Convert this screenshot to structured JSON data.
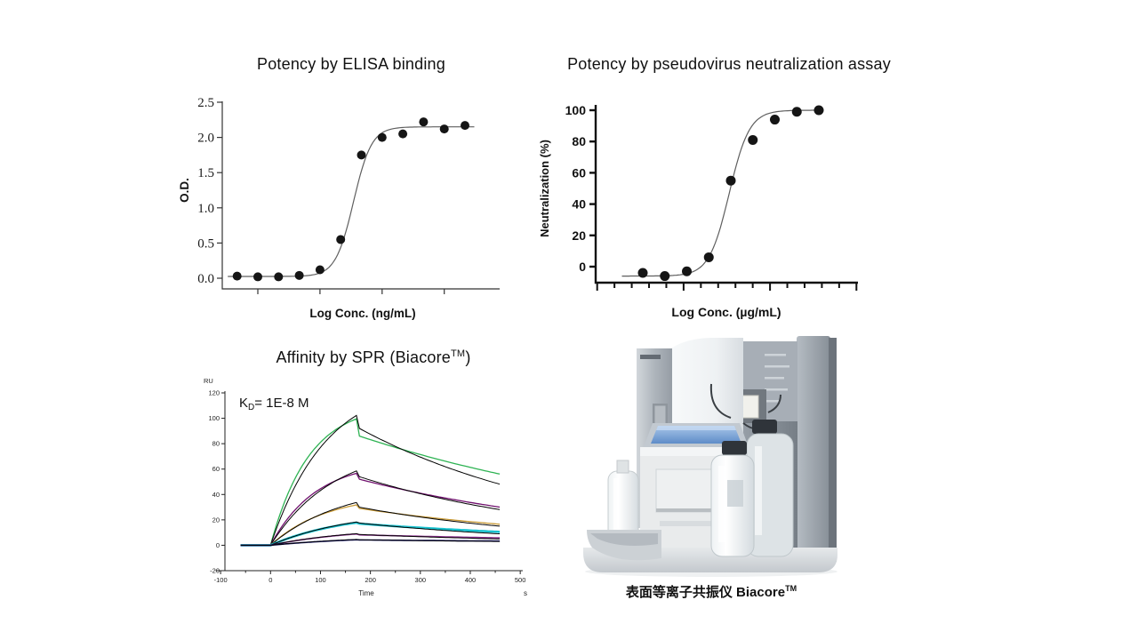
{
  "figure": {
    "background": "#ffffff"
  },
  "chart_data": [
    {
      "id": "elisa",
      "type": "scatter",
      "title": "Potency by ELISA binding",
      "xlabel": "Log Conc. (ng/mL)",
      "ylabel": "O.D.",
      "ylim": [
        0,
        2.5
      ],
      "ytick_labels": [
        "0.0",
        "0.5",
        "1.0",
        "1.5",
        "2.0",
        "2.5"
      ],
      "ytick_values": [
        0,
        0.5,
        1.0,
        1.5,
        2.0,
        2.5
      ],
      "x_axis_note": "unlabeled log-dilution ticks",
      "x_tick_point_indices": [
        1,
        4,
        7,
        10
      ],
      "values": [
        0.03,
        0.02,
        0.02,
        0.04,
        0.12,
        0.55,
        1.75,
        2.0,
        2.05,
        2.22,
        2.12,
        2.17
      ],
      "fit4pl": {
        "bottom": 0.025,
        "top": 2.15,
        "mid_index": 5.62,
        "hill": 1.0
      },
      "point_color": "#151515",
      "curve_color": "#5f5f5f",
      "grid": false,
      "legend": "none"
    },
    {
      "id": "neutralization",
      "type": "scatter",
      "title": "Potency by pseudovirus neutralization assay",
      "xlabel": "Log Conc. (µg/mL)",
      "ylabel": "Neutralization (%)",
      "ylim": [
        -12,
        105
      ],
      "ytick_labels": [
        "0",
        "20",
        "40",
        "60",
        "80",
        "100"
      ],
      "ytick_values": [
        0,
        20,
        40,
        60,
        80,
        100
      ],
      "x_axis_note": "unlabeled log-dilution ticks",
      "n_x_ticks": 16,
      "major_every": 5,
      "values": [
        -4,
        -6,
        -3,
        6,
        55,
        81,
        94,
        99,
        100
      ],
      "fit4pl": {
        "bottom": -6,
        "top": 100,
        "mid_index": 3.93,
        "hill": 0.95
      },
      "point_color": "#151515",
      "curve_color": "#5f5f5f",
      "grid": false,
      "legend": "none"
    },
    {
      "id": "spr",
      "type": "line",
      "title_prefix": "Affinity by SPR (Biacore",
      "title_sup": "TM",
      "title_suffix": ")",
      "annotation": {
        "main": "K",
        "sub": "D",
        "rest": "= 1E-8 M"
      },
      "y_unit": "RU",
      "xlabel": "Time",
      "x_unit": "s",
      "ylim": [
        -20,
        120
      ],
      "ytick_values": [
        120,
        100,
        80,
        60,
        40,
        20,
        0,
        -20
      ],
      "xtick_values": [
        -100,
        0,
        100,
        200,
        300,
        400,
        500
      ],
      "xlim": [
        -100,
        500
      ],
      "baseline_start": -60,
      "assoc_start": 0,
      "peak_time": 175,
      "end_time": 460,
      "grid": false,
      "series": [
        {
          "name": "sensorgram-1",
          "color": "#2eb353",
          "width": 1.3,
          "peak": 100,
          "after_spike": 86,
          "end": 56,
          "ka": 0.013
        },
        {
          "name": "fit-1",
          "color": "#000000",
          "width": 1.0,
          "peak": 103,
          "after_spike": 92,
          "end": 48,
          "ka": 0.009
        },
        {
          "name": "sensorgram-2",
          "color": "#70106e",
          "width": 1.3,
          "peak": 57,
          "after_spike": 52,
          "end": 30,
          "ka": 0.011
        },
        {
          "name": "fit-2",
          "color": "#000000",
          "width": 1.0,
          "peak": 59,
          "after_spike": 54,
          "end": 28,
          "ka": 0.008
        },
        {
          "name": "sensorgram-3",
          "color": "#c89a36",
          "width": 1.3,
          "peak": 32,
          "after_spike": 29,
          "end": 16.5,
          "ka": 0.009
        },
        {
          "name": "fit-3",
          "color": "#000000",
          "width": 1.0,
          "peak": 34,
          "after_spike": 30,
          "end": 15,
          "ka": 0.007
        },
        {
          "name": "sensorgram-4",
          "color": "#19c2cf",
          "width": 2.6,
          "peak": 18,
          "after_spike": 17,
          "end": 10.5,
          "ka": 0.0065
        },
        {
          "name": "fit-4",
          "color": "#000000",
          "width": 1.0,
          "peak": 18.5,
          "after_spike": 17.5,
          "end": 9,
          "ka": 0.006
        },
        {
          "name": "sensorgram-5",
          "color": "#8d3090",
          "width": 1.6,
          "peak": 9,
          "after_spike": 8.2,
          "end": 5.8,
          "ka": 0.006
        },
        {
          "name": "fit-5",
          "color": "#000000",
          "width": 1.0,
          "peak": 9.2,
          "after_spike": 8.5,
          "end": 5,
          "ka": 0.006
        },
        {
          "name": "sensorgram-6",
          "color": "#15156d",
          "width": 1.6,
          "peak": 4.4,
          "after_spike": 4.2,
          "end": 3.3,
          "ka": 0.005
        },
        {
          "name": "fit-6",
          "color": "#000000",
          "width": 1.0,
          "peak": 4.6,
          "after_spike": 4.3,
          "end": 3,
          "ka": 0.005
        }
      ]
    }
  ],
  "instrument": {
    "caption_prefix": "表面等离子共振仪 Biacore",
    "caption_sup": "TM"
  }
}
